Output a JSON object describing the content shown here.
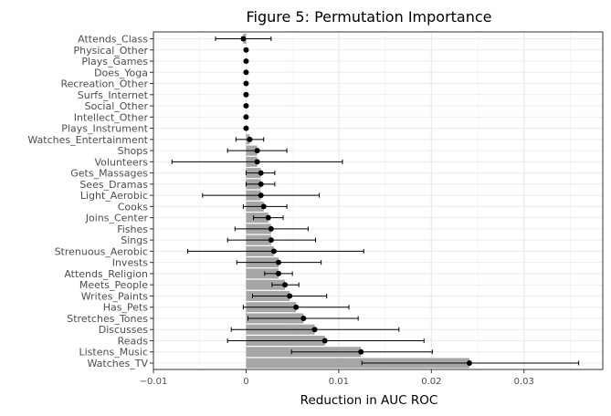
{
  "chart_data": {
    "type": "bar",
    "title": "Figure 5: Permutation Importance",
    "xlabel": "Reduction in AUC ROC",
    "ylabel": "",
    "xlim": [
      -0.01,
      0.0385
    ],
    "xticks": [
      -0.01,
      0,
      0.01,
      0.02,
      0.03
    ],
    "xtick_labels": [
      "−0.01",
      "0",
      "0.01",
      "0.02",
      "0.03"
    ],
    "grid": true,
    "bar_color": "#a6a6a6",
    "point_color": "#000000",
    "categories": [
      "Attends_Class",
      "Physical_Other",
      "Plays_Games",
      "Does_Yoga",
      "Recreation_Other",
      "Surfs_Internet",
      "Social_Other",
      "Intellect_Other",
      "Plays_Instrument",
      "Watches_Entertainment",
      "Shops",
      "Volunteers",
      "Gets_Massages",
      "Sees_Dramas",
      "Light_Aerobic",
      "Cooks",
      "Joins_Center",
      "Fishes",
      "Sings",
      "Strenuous_Aerobic",
      "Invests",
      "Attends_Religion",
      "Meets_People",
      "Writes_Paints",
      "Has_Pets",
      "Stretches_Tones",
      "Discusses",
      "Reads",
      "Listens_Music",
      "Watches_TV"
    ],
    "values": [
      -0.0003,
      0,
      0,
      0,
      0,
      0,
      0,
      0,
      0,
      0.0004,
      0.0012,
      0.0012,
      0.0016,
      0.0016,
      0.0016,
      0.0019,
      0.0024,
      0.0027,
      0.0027,
      0.003,
      0.0035,
      0.0035,
      0.0042,
      0.0047,
      0.0054,
      0.0062,
      0.0074,
      0.0085,
      0.0124,
      0.0241
    ],
    "error_low": [
      -0.0033,
      0,
      0,
      0,
      0,
      0,
      0,
      0,
      0,
      -0.0011,
      -0.002,
      -0.008,
      0,
      0,
      -0.0047,
      -0.0003,
      0.0008,
      -0.0012,
      -0.002,
      -0.0063,
      -0.001,
      0.002,
      0.0028,
      0.0007,
      -0.0003,
      0.0002,
      -0.0016,
      -0.002,
      0.0049,
      0.0125
    ],
    "error_high": [
      0.0027,
      0,
      0,
      0,
      0,
      0,
      0,
      0,
      0,
      0.0019,
      0.0044,
      0.0104,
      0.0031,
      0.0031,
      0.0079,
      0.0044,
      0.004,
      0.0067,
      0.0075,
      0.0127,
      0.0081,
      0.005,
      0.0057,
      0.0087,
      0.0111,
      0.0121,
      0.0165,
      0.0192,
      0.0201,
      0.0359
    ]
  }
}
